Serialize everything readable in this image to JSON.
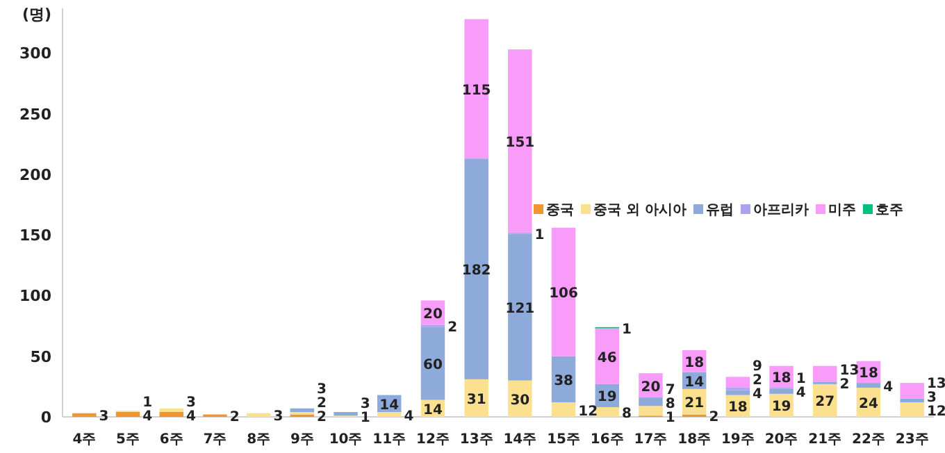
{
  "chart_data": {
    "type": "bar",
    "stacked": true,
    "ylabel": "(명)",
    "ylim": [
      0,
      330
    ],
    "yticks": [
      0,
      50,
      100,
      150,
      200,
      250,
      300
    ],
    "grid": false,
    "legend": "right",
    "data_labels": true,
    "categories": [
      "4주",
      "5주",
      "6주",
      "7주",
      "8주",
      "9주",
      "10주",
      "11주",
      "12주",
      "13주",
      "14주",
      "15주",
      "16주",
      "17주",
      "18주",
      "19주",
      "20주",
      "21주",
      "22주",
      "23주"
    ],
    "series": [
      {
        "name": "중국",
        "color": "#f0952f",
        "values": [
          3,
          4,
          4,
          2,
          null,
          2,
          null,
          null,
          null,
          null,
          null,
          null,
          null,
          1,
          2,
          null,
          null,
          null,
          null,
          null
        ]
      },
      {
        "name": "중국 외 아시아",
        "color": "#fbe08f",
        "values": [
          null,
          1,
          3,
          null,
          3,
          2,
          1,
          4,
          14,
          31,
          30,
          12,
          8,
          8,
          21,
          18,
          19,
          27,
          24,
          12
        ]
      },
      {
        "name": "유럽",
        "color": "#8eaadb",
        "values": [
          null,
          null,
          null,
          null,
          null,
          3,
          3,
          14,
          60,
          182,
          121,
          38,
          19,
          7,
          14,
          4,
          4,
          2,
          4,
          3
        ]
      },
      {
        "name": "아프리카",
        "color": "#a9a3f0",
        "values": [
          null,
          null,
          null,
          null,
          null,
          null,
          null,
          null,
          2,
          null,
          1,
          null,
          null,
          null,
          null,
          2,
          1,
          null,
          null,
          null
        ]
      },
      {
        "name": "미주",
        "color": "#f99cf9",
        "values": [
          null,
          null,
          null,
          null,
          null,
          null,
          null,
          null,
          20,
          115,
          151,
          106,
          46,
          20,
          18,
          9,
          18,
          13,
          18,
          13
        ]
      },
      {
        "name": "호주",
        "color": "#00c07f",
        "values": [
          null,
          null,
          null,
          null,
          null,
          null,
          null,
          null,
          null,
          null,
          null,
          null,
          1,
          null,
          null,
          null,
          null,
          null,
          null,
          null
        ]
      }
    ]
  }
}
